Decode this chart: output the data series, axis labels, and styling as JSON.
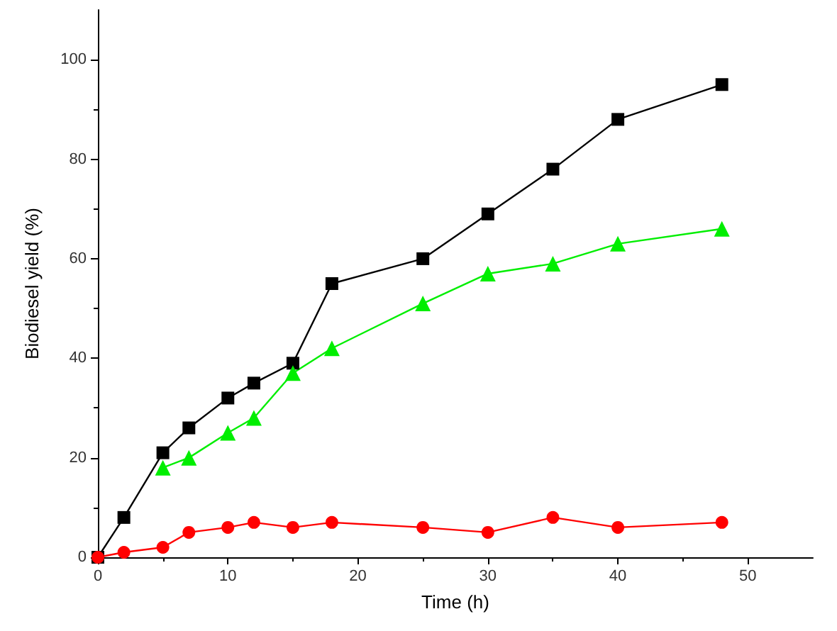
{
  "chart_data": {
    "type": "line",
    "xlabel": "Time (h)",
    "ylabel": "Biodiesel yield (%)",
    "xlim": [
      0,
      55
    ],
    "xticks": [
      0,
      10,
      20,
      30,
      40,
      50
    ],
    "ylim": [
      0,
      110
    ],
    "yticks": [
      0,
      20,
      40,
      60,
      80,
      100
    ],
    "grid": false,
    "legend": false,
    "series": [
      {
        "color": "#000000",
        "marker": "square",
        "x": [
          0,
          2,
          5,
          7,
          10,
          12,
          15,
          18,
          25,
          30,
          35,
          40,
          48
        ],
        "values": [
          0,
          8,
          21,
          26,
          32,
          35,
          39,
          55,
          60,
          69,
          78,
          88,
          95
        ]
      },
      {
        "color": "#00ee00",
        "marker": "triangle",
        "x": [
          5,
          7,
          10,
          12,
          15,
          18,
          25,
          30,
          35,
          40,
          48
        ],
        "values": [
          18,
          20,
          25,
          28,
          37,
          42,
          51,
          57,
          59,
          63,
          66
        ]
      },
      {
        "color": "#ff0000",
        "marker": "circle",
        "x": [
          0,
          2,
          5,
          7,
          10,
          12,
          15,
          18,
          25,
          30,
          35,
          40,
          48
        ],
        "values": [
          0,
          1,
          2,
          5,
          6,
          7,
          6,
          7,
          6,
          5,
          8,
          6,
          7
        ]
      }
    ]
  }
}
